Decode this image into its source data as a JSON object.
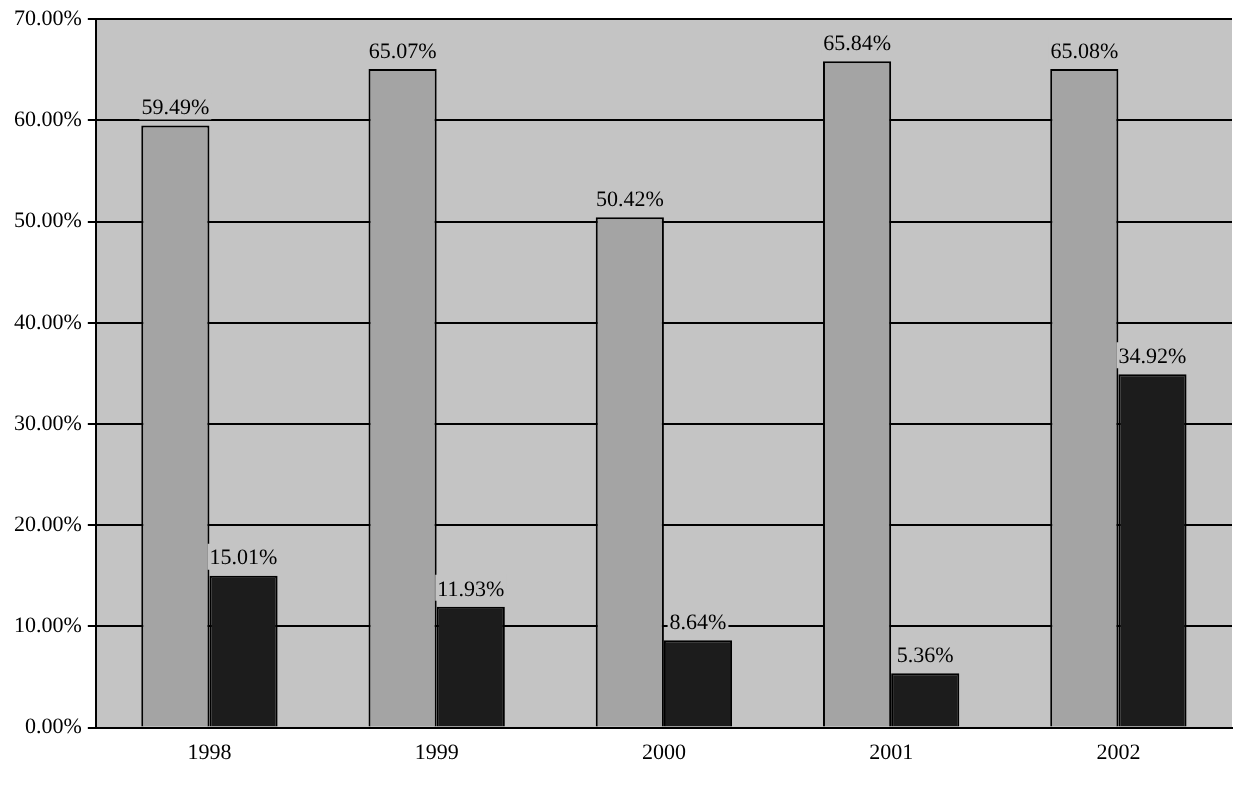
{
  "chart_data": {
    "type": "bar",
    "categories": [
      "1998",
      "1999",
      "2000",
      "2001",
      "2002"
    ],
    "series": [
      {
        "color": "#a4a4a4",
        "values": [
          59.49,
          65.07,
          50.42,
          65.84,
          65.08
        ],
        "value_labels": [
          "59.49%",
          "65.07%",
          "50.42%",
          "65.84%",
          "65.08%"
        ]
      },
      {
        "color": "#1c1c1c",
        "values": [
          15.01,
          11.93,
          8.64,
          5.36,
          34.92
        ],
        "value_labels": [
          "15.01%",
          "11.93%",
          "8.64%",
          "5.36%",
          "34.92%"
        ]
      }
    ],
    "ylim": [
      0,
      70
    ],
    "yticks": [
      {
        "value": 0,
        "label": "0.00%"
      },
      {
        "value": 10,
        "label": "10.00%"
      },
      {
        "value": 20,
        "label": "20.00%"
      },
      {
        "value": 30,
        "label": "30.00%"
      },
      {
        "value": 40,
        "label": "40.00%"
      },
      {
        "value": 50,
        "label": "50.00%"
      },
      {
        "value": 60,
        "label": "60.00%"
      },
      {
        "value": 70,
        "label": "70.00%"
      }
    ],
    "grid": "y",
    "legend": false
  }
}
